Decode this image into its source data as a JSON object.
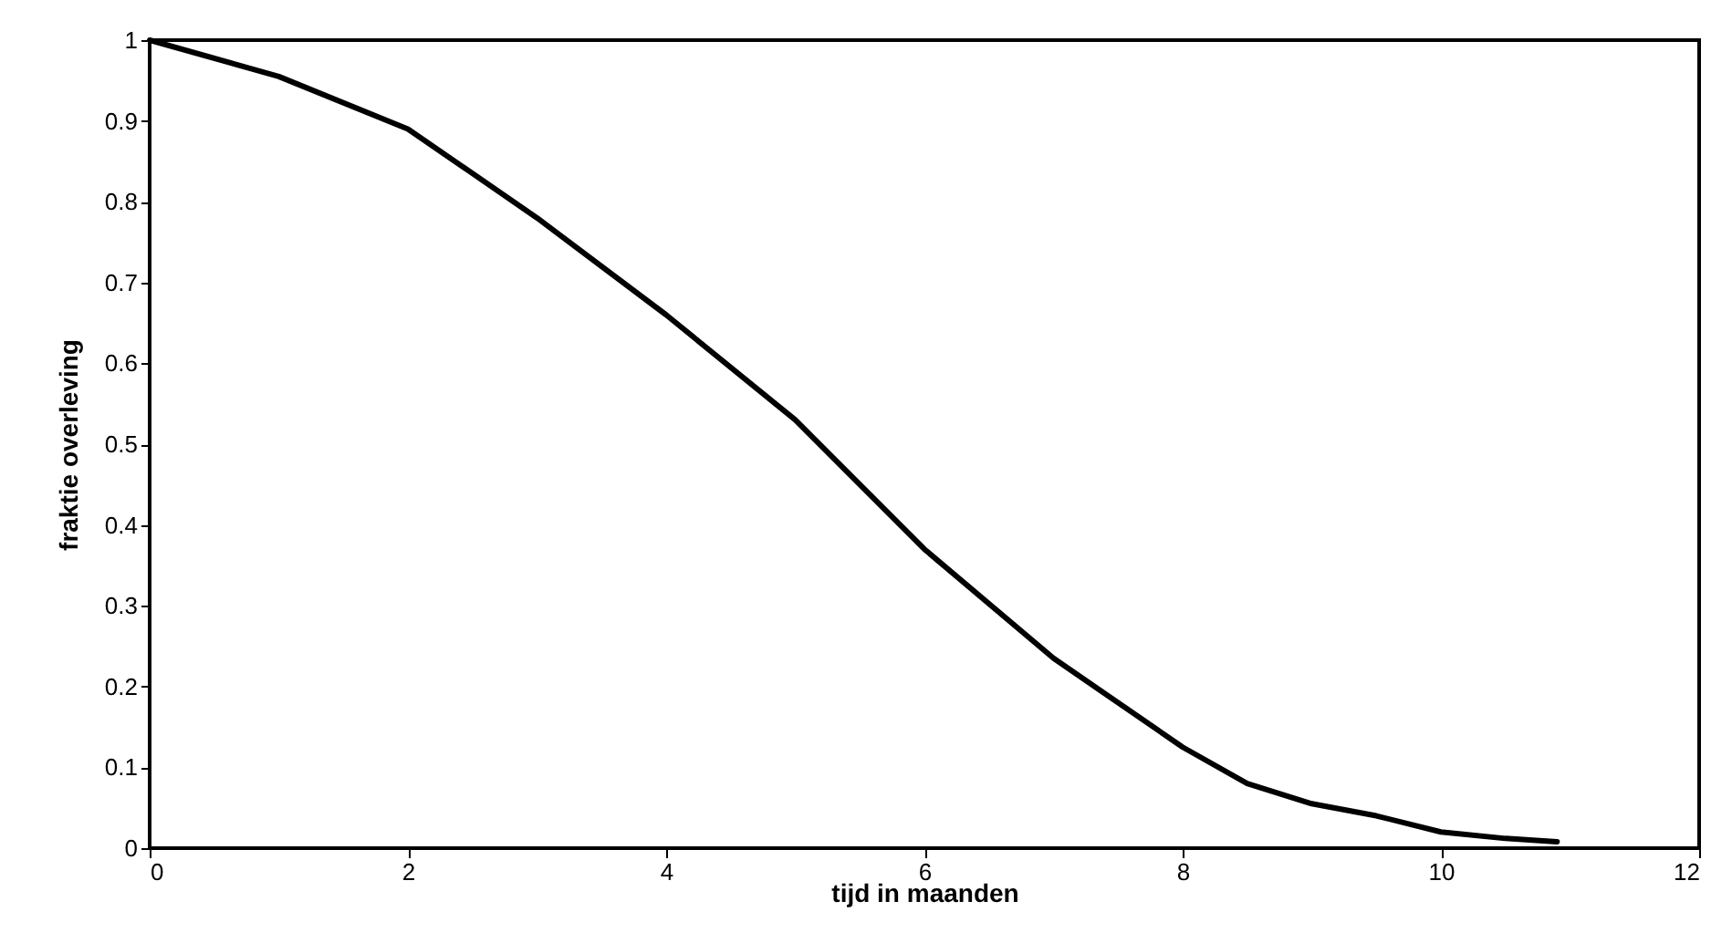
{
  "chart_data": {
    "type": "line",
    "xlabel": "tijd in maanden",
    "ylabel": "fraktie overleving",
    "x": [
      0,
      1,
      2,
      3,
      4,
      5,
      6,
      7,
      8,
      8.5,
      9,
      9.5,
      10,
      10.5,
      10.9
    ],
    "series": [
      {
        "color": "#000000",
        "values": [
          1,
          0.955,
          0.89,
          0.78,
          0.66,
          0.53,
          0.37,
          0.235,
          0.125,
          0.08,
          0.055,
          0.04,
          0.02,
          0.012,
          0.008
        ]
      }
    ],
    "xlim": [
      0,
      12
    ],
    "xticks": [
      0,
      2,
      4,
      6,
      8,
      10,
      12
    ],
    "ylim": [
      0,
      1
    ],
    "yticks": [
      0,
      0.1,
      0.2,
      0.3,
      0.4,
      0.5,
      0.6,
      0.7,
      0.8,
      0.9,
      1
    ],
    "grid": false,
    "legend": false
  }
}
